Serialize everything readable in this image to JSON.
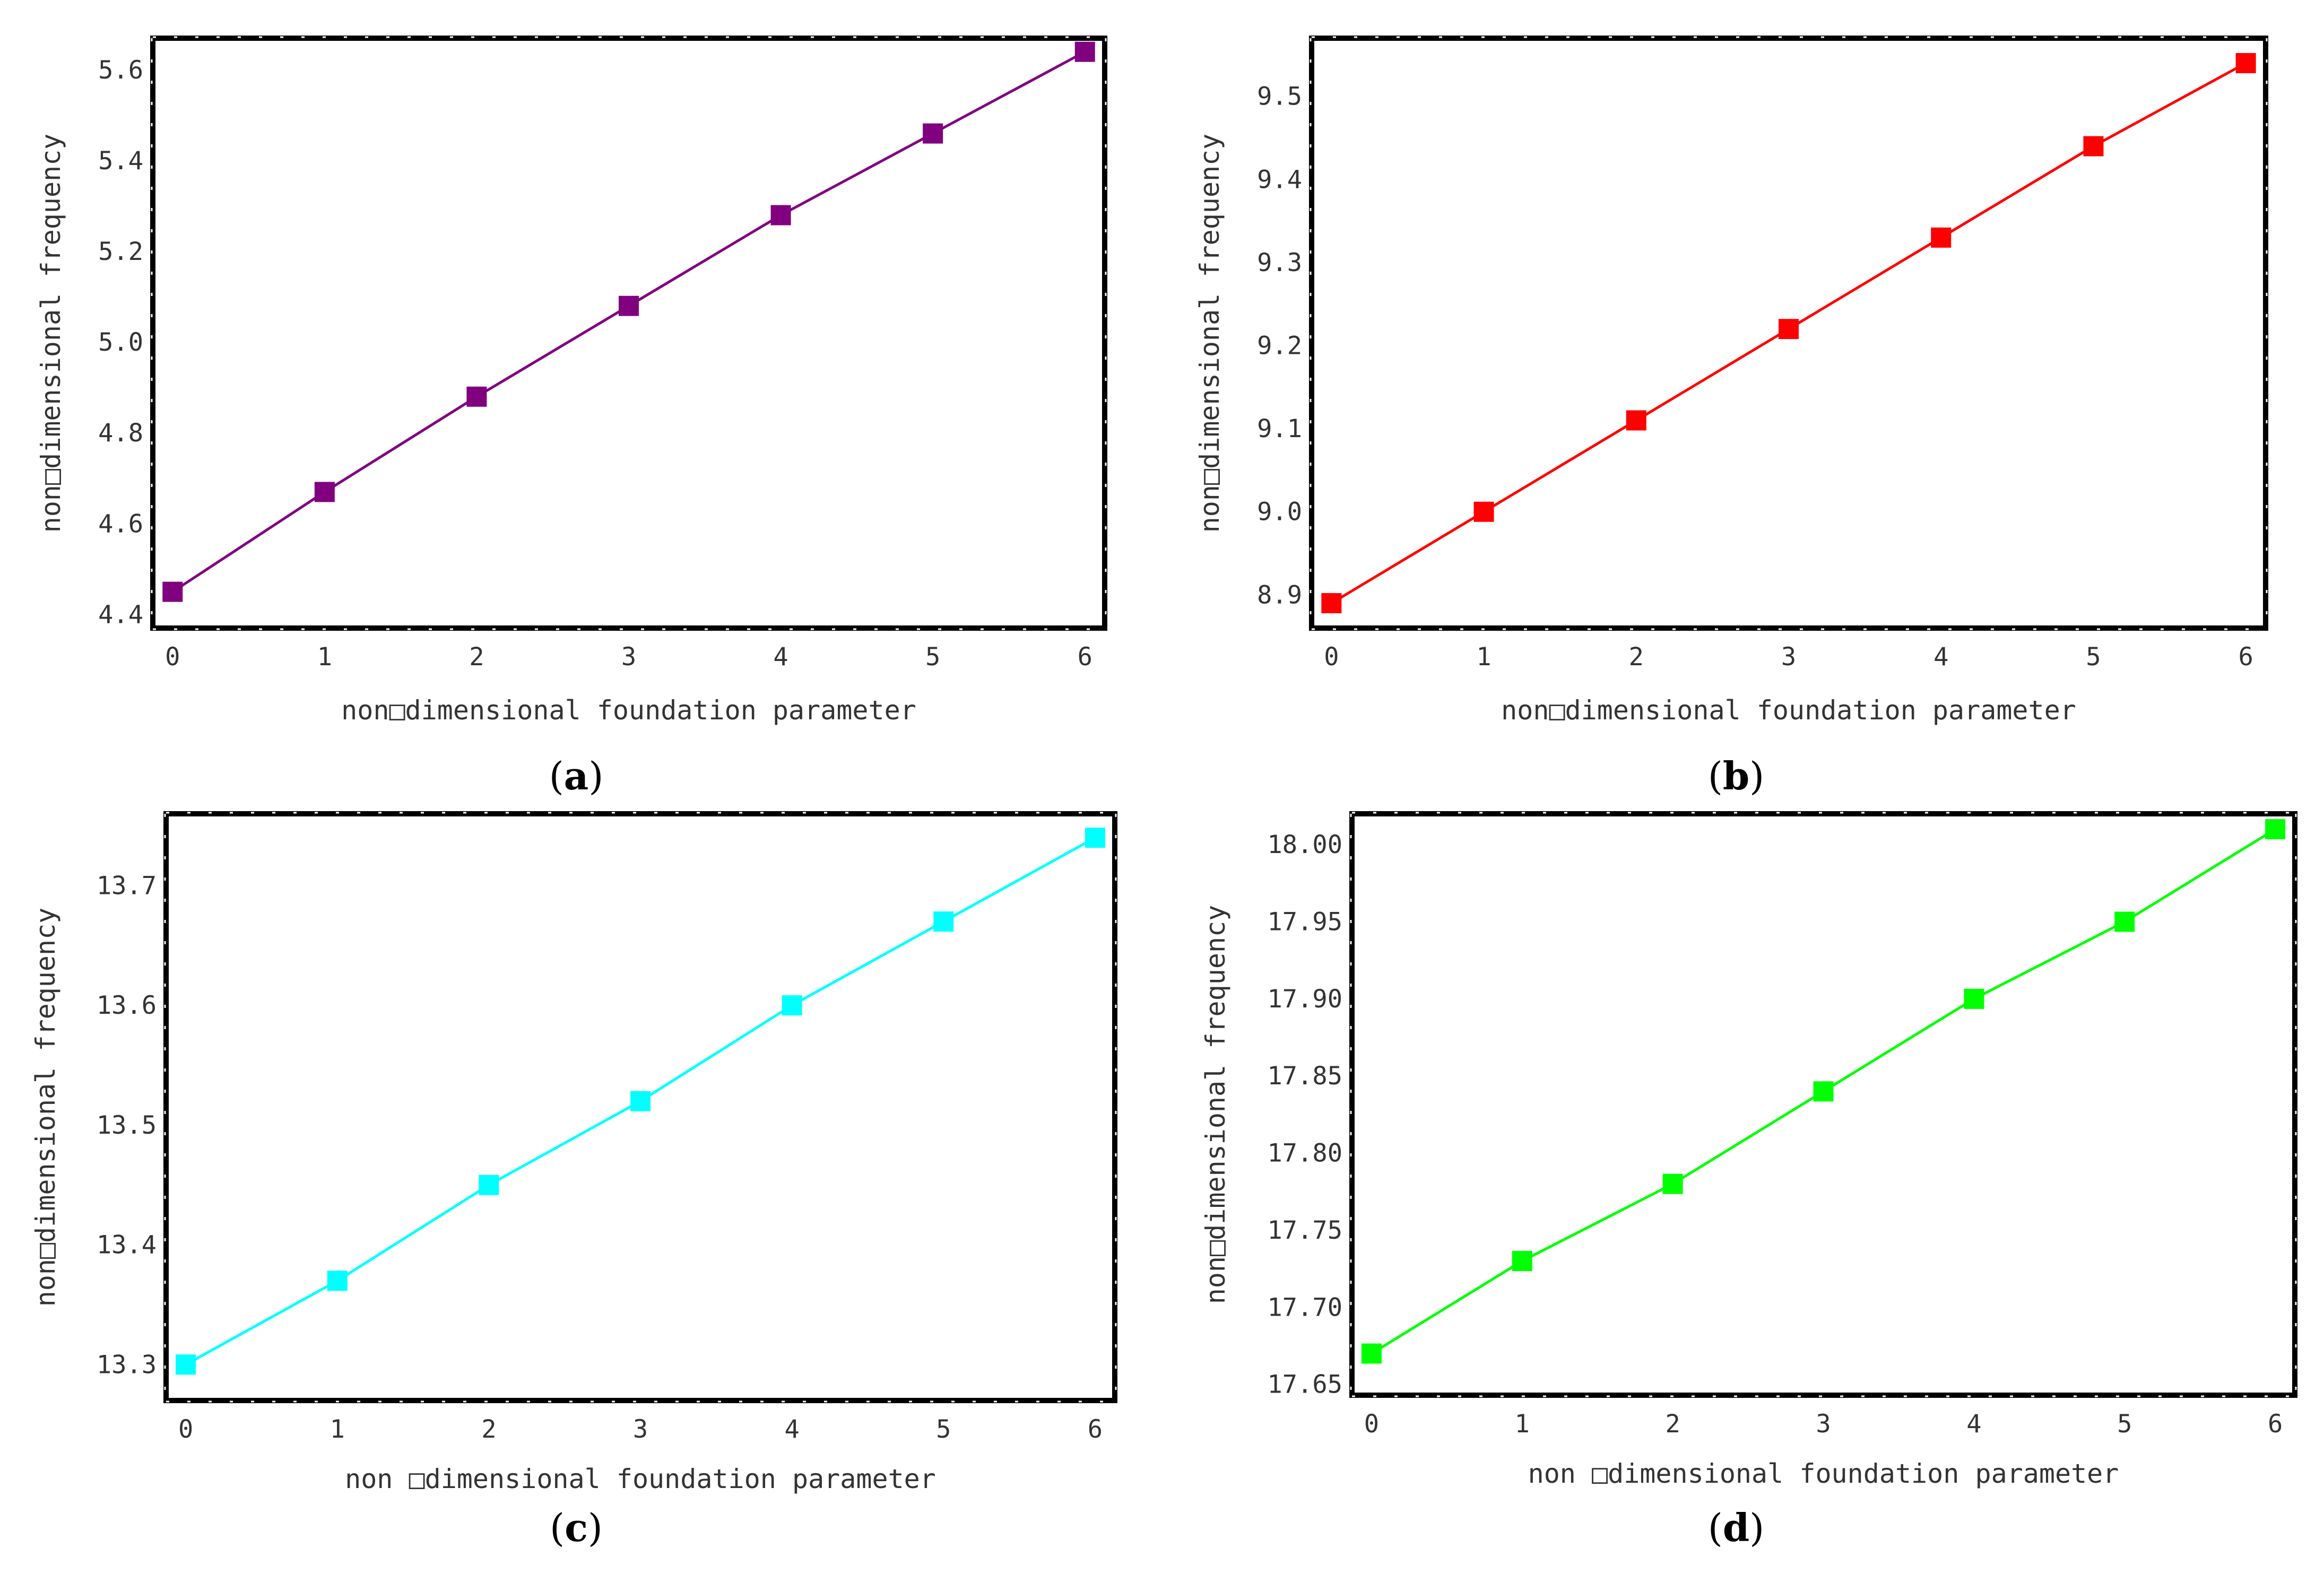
{
  "chart_data": [
    {
      "type": "line",
      "caption_letter": "a",
      "xlabel": "non□dimensional foundation parameter",
      "ylabel": "non□dimensional frequency",
      "x": [
        0,
        1,
        2,
        3,
        4,
        5,
        6
      ],
      "series": [
        {
          "values": [
            4.45,
            4.67,
            4.88,
            5.08,
            5.28,
            5.46,
            5.64
          ],
          "color": "#800080"
        }
      ],
      "xlim": [
        -0.13,
        6.13
      ],
      "ylim": [
        4.37,
        5.67
      ],
      "xticks": [
        "0",
        "1",
        "2",
        "3",
        "4",
        "5",
        "6"
      ],
      "yticks": [
        "4.4",
        "4.6",
        "4.8",
        "5.0",
        "5.2",
        "5.4",
        "5.6"
      ],
      "ytick_values": [
        4.4,
        4.6,
        4.8,
        5.0,
        5.2,
        5.4,
        5.6
      ],
      "grid": false,
      "marker": "square"
    },
    {
      "type": "line",
      "caption_letter": "b",
      "xlabel": "non□dimensional foundation parameter",
      "ylabel": "non□dimensional frequency",
      "x": [
        0,
        1,
        2,
        3,
        4,
        5,
        6
      ],
      "series": [
        {
          "values": [
            8.89,
            9.0,
            9.11,
            9.22,
            9.33,
            9.44,
            9.54
          ],
          "color": "#ff0000"
        }
      ],
      "xlim": [
        -0.13,
        6.13
      ],
      "ylim": [
        8.86,
        9.57
      ],
      "xticks": [
        "0",
        "1",
        "2",
        "3",
        "4",
        "5",
        "6"
      ],
      "yticks": [
        "8.9",
        "9.0",
        "9.1",
        "9.2",
        "9.3",
        "9.4",
        "9.5"
      ],
      "ytick_values": [
        8.9,
        9.0,
        9.1,
        9.2,
        9.3,
        9.4,
        9.5
      ],
      "grid": false,
      "marker": "square"
    },
    {
      "type": "line",
      "caption_letter": "c",
      "xlabel": "non □dimensional   foundation   parameter",
      "ylabel": "non□dimensional frequency",
      "x": [
        0,
        1,
        2,
        3,
        4,
        5,
        6
      ],
      "series": [
        {
          "values": [
            13.3,
            13.37,
            13.45,
            13.52,
            13.6,
            13.67,
            13.74
          ],
          "color": "#00ffff"
        }
      ],
      "xlim": [
        -0.13,
        6.13
      ],
      "ylim": [
        13.27,
        13.76
      ],
      "xticks": [
        "0",
        "1",
        "2",
        "3",
        "4",
        "5",
        "6"
      ],
      "yticks": [
        "13.3",
        "13.4",
        "13.5",
        "13.6",
        "13.7"
      ],
      "ytick_values": [
        13.3,
        13.4,
        13.5,
        13.6,
        13.7
      ],
      "grid": false,
      "marker": "square"
    },
    {
      "type": "line",
      "caption_letter": "d",
      "xlabel": "non □dimensional   foundation   parameter",
      "ylabel": "non□dimensional frequency",
      "x": [
        0,
        1,
        2,
        3,
        4,
        5,
        6
      ],
      "series": [
        {
          "values": [
            17.67,
            17.73,
            17.78,
            17.84,
            17.9,
            17.95,
            18.01
          ],
          "color": "#00ff00"
        }
      ],
      "xlim": [
        -0.13,
        6.13
      ],
      "ylim": [
        17.643,
        18.02
      ],
      "xticks": [
        "0",
        "1",
        "2",
        "3",
        "4",
        "5",
        "6"
      ],
      "yticks": [
        "17.65",
        "17.70",
        "17.75",
        "17.80",
        "17.85",
        "17.90",
        "17.95",
        "18.00"
      ],
      "ytick_values": [
        17.65,
        17.7,
        17.75,
        17.8,
        17.85,
        17.9,
        17.95,
        18.0
      ],
      "grid": false,
      "marker": "square"
    }
  ]
}
